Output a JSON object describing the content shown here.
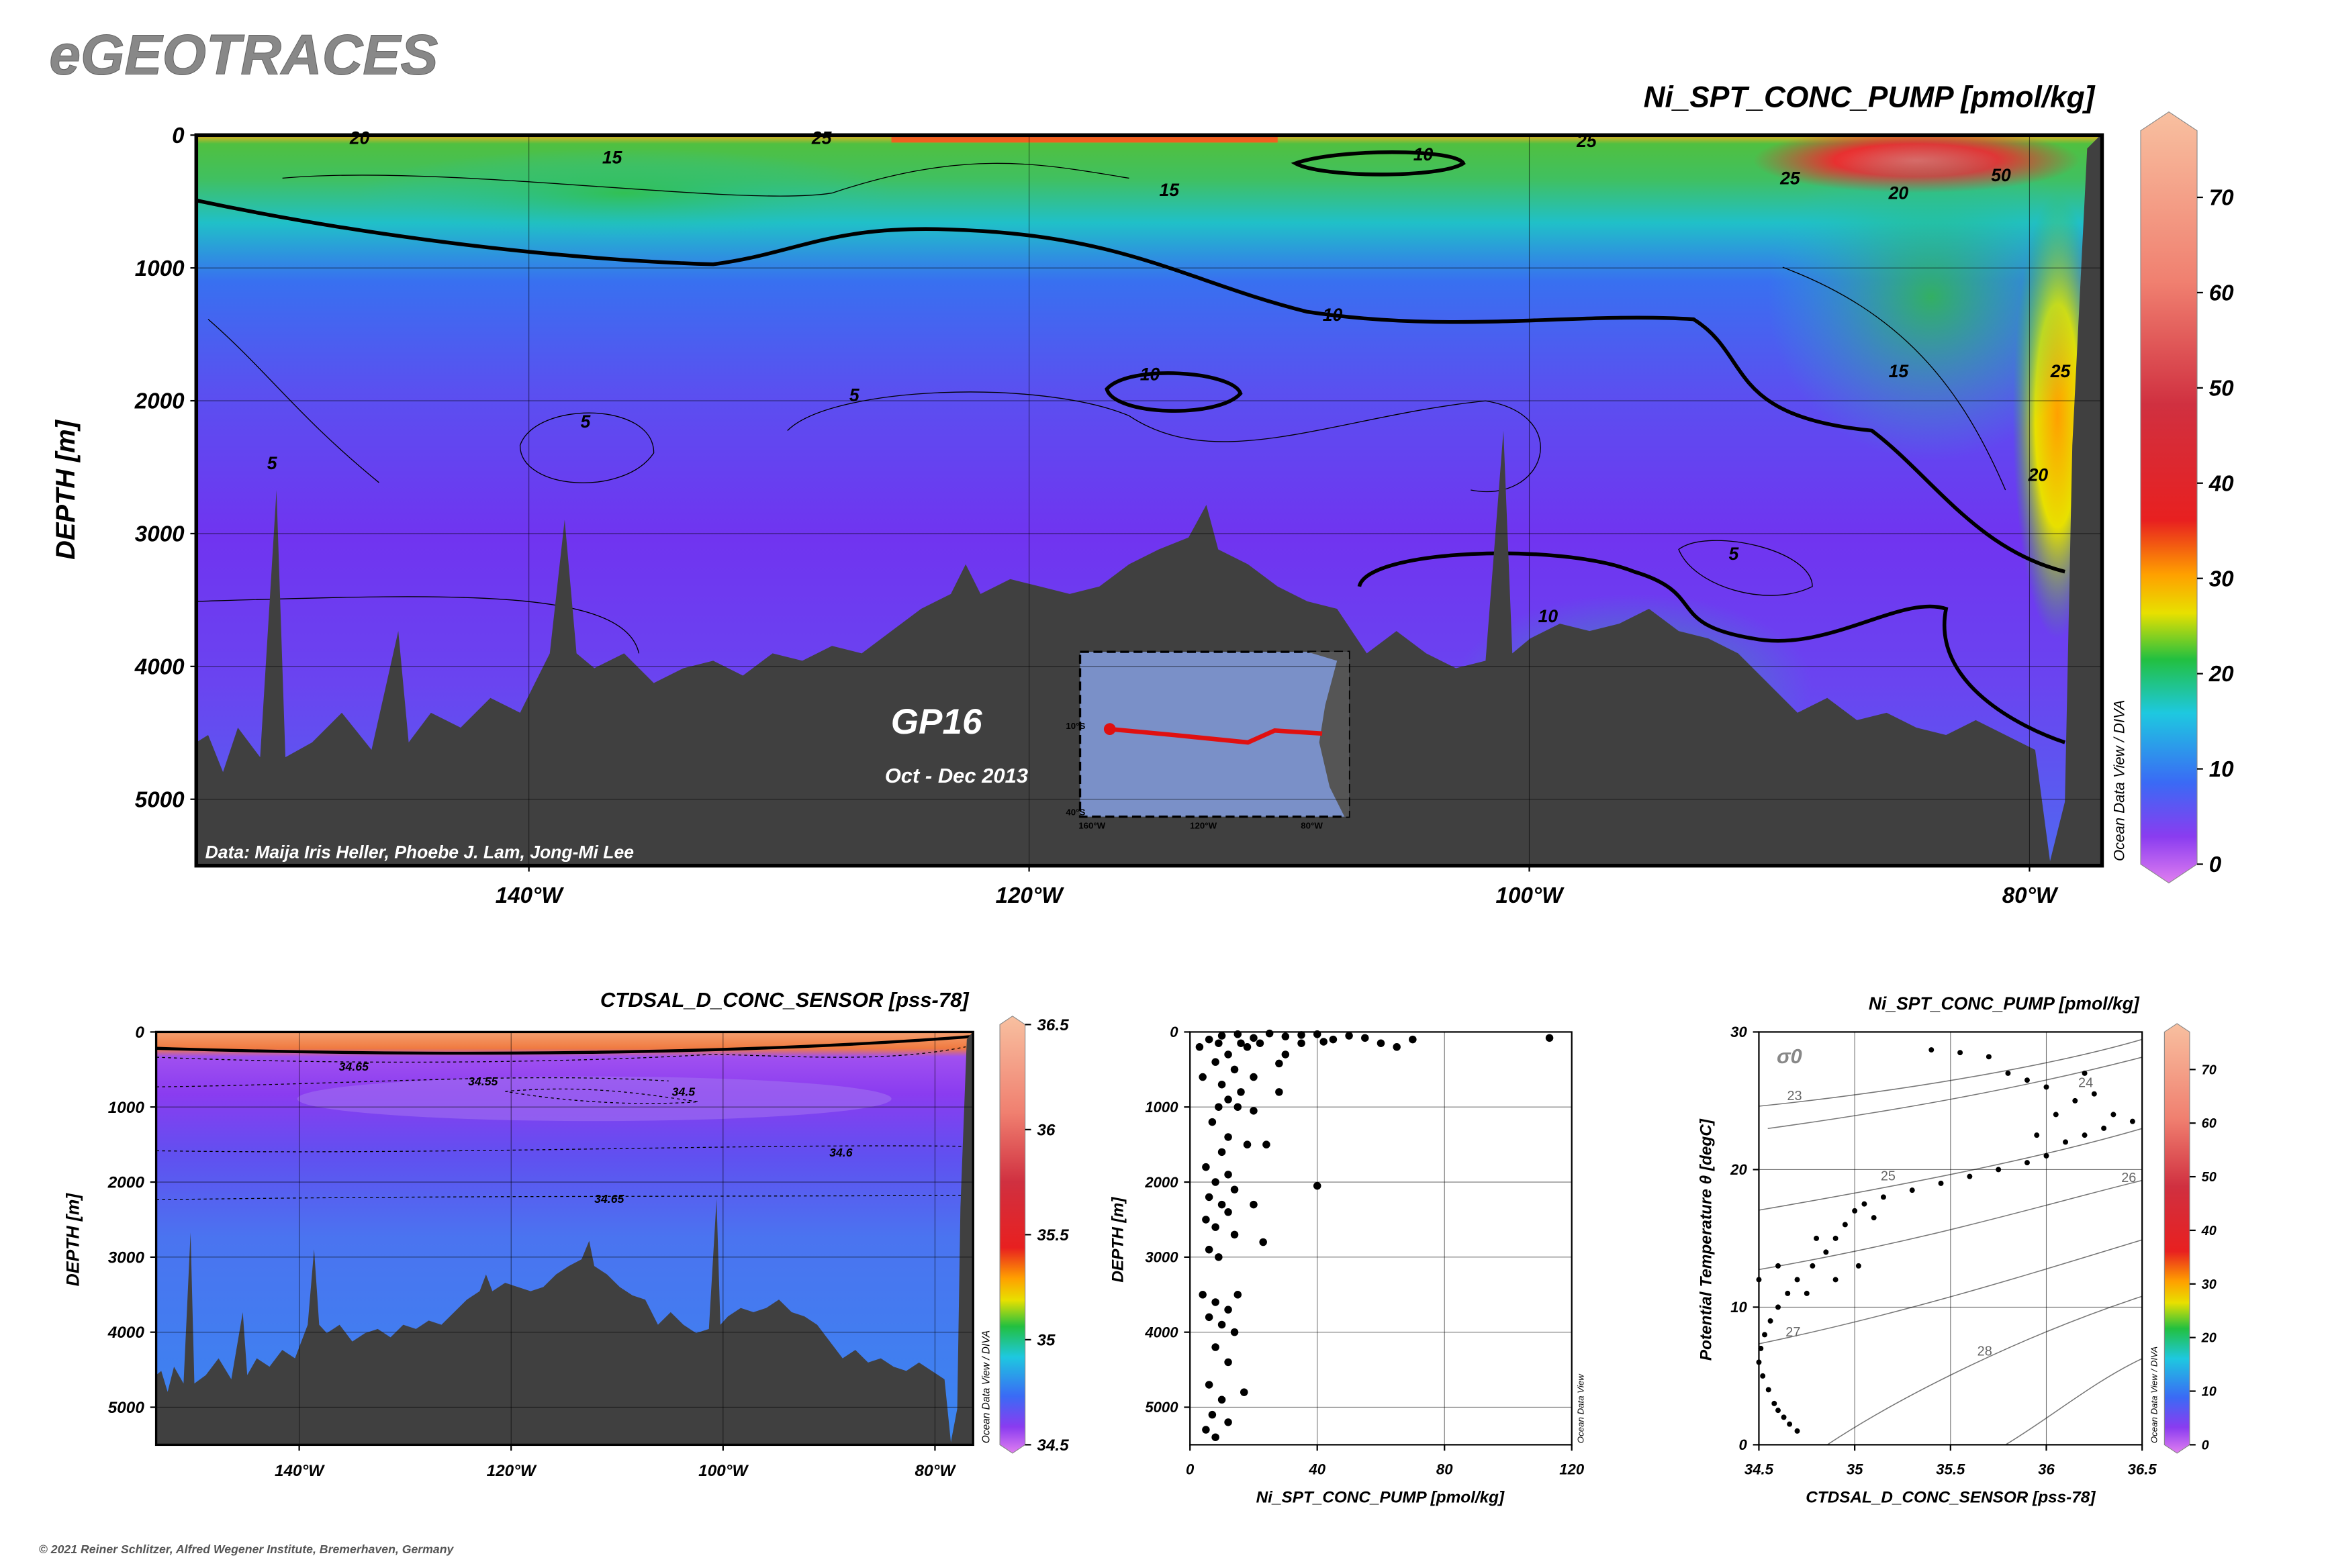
{
  "header": {
    "title": "eGEOTRACES",
    "footer": "© 2021 Reiner Schlitzer, Alfred Wegener Institute, Bremerhaven, Germany"
  },
  "chart_data": [
    {
      "type": "section",
      "title": "Ni_SPT_CONC_PUMP [pmol/kg]",
      "y_label": "DEPTH [m]",
      "xlim": [
        -153.3,
        -77.1
      ],
      "xticks": [
        {
          "value": -140,
          "label": "140°W"
        },
        {
          "value": -120,
          "label": "120°W"
        },
        {
          "value": -100,
          "label": "100°W"
        },
        {
          "value": -80,
          "label": "80°W"
        }
      ],
      "ylim": [
        0,
        5500
      ],
      "yreverse": true,
      "yticks": [
        0,
        1000,
        2000,
        3000,
        4000,
        5000
      ],
      "grid": true,
      "colorbar": {
        "lim": [
          0,
          77
        ],
        "ticks": [
          0,
          10,
          20,
          30,
          40,
          50,
          60,
          70
        ]
      },
      "contour_labels": [
        20,
        25,
        15,
        10,
        25,
        15,
        25,
        20,
        50,
        10,
        10,
        5,
        5,
        5,
        15,
        25,
        20,
        5,
        10
      ],
      "annotations": [
        "GP16",
        "Oct - Dec 2013",
        "Data: Maija Iris Heller, Phoebe J. Lam, Jong-Mi Lee",
        "Ocean Data View / DIVA"
      ],
      "inset_labels": [
        "10°S",
        "40°S",
        "160°W",
        "120°W",
        "80°W"
      ]
    },
    {
      "type": "section",
      "title": "CTDSAL_D_CONC_SENSOR [pss-78]",
      "y_label": "DEPTH [m]",
      "xlim": [
        -153.5,
        -76.4
      ],
      "xticks": [
        {
          "value": -140,
          "label": "140°W"
        },
        {
          "value": -120,
          "label": "120°W"
        },
        {
          "value": -100,
          "label": "100°W"
        },
        {
          "value": -80,
          "label": "80°W"
        }
      ],
      "ylim": [
        0,
        5500
      ],
      "yreverse": true,
      "yticks": [
        0,
        1000,
        2000,
        3000,
        4000,
        5000
      ],
      "grid": true,
      "colorbar": {
        "lim": [
          34.5,
          36.5
        ],
        "ticks": [
          34.5,
          35,
          35.5,
          36,
          36.5
        ]
      },
      "contour_labels": [
        34.65,
        34.55,
        34.5,
        34.6,
        34.65
      ],
      "annotations": [
        "Ocean Data View / DIVA"
      ]
    },
    {
      "type": "scatter",
      "x_label": "Ni_SPT_CONC_PUMP [pmol/kg]",
      "y_label": "DEPTH [m]",
      "xlim": [
        0,
        120
      ],
      "xticks": [
        0,
        40,
        80,
        120
      ],
      "ylim": [
        0,
        5500
      ],
      "yreverse": true,
      "yticks": [
        0,
        1000,
        2000,
        3000,
        4000,
        5000
      ],
      "grid": true,
      "color": "#000000",
      "x": [
        10,
        15,
        20,
        25,
        30,
        35,
        40,
        45,
        50,
        55,
        60,
        65,
        70,
        113,
        18,
        12,
        8,
        14,
        20,
        10,
        16,
        12,
        9,
        15,
        20,
        28,
        7,
        12,
        18,
        10,
        24,
        5,
        12,
        8,
        14,
        40,
        6,
        10,
        12,
        20,
        5,
        8,
        14,
        23,
        6,
        9,
        4,
        8,
        12,
        15,
        6,
        10,
        14,
        8,
        12,
        6,
        10,
        17,
        7,
        12,
        5,
        8,
        28,
        30,
        35,
        42,
        22,
        16,
        9,
        6,
        3,
        4
      ],
      "values": [
        50,
        30,
        80,
        20,
        60,
        40,
        30,
        100,
        50,
        80,
        150,
        200,
        100,
        80,
        200,
        300,
        400,
        500,
        600,
        700,
        800,
        900,
        1000,
        1000,
        1050,
        800,
        1200,
        1400,
        1500,
        1600,
        1500,
        1800,
        1900,
        2000,
        2100,
        2050,
        2200,
        2300,
        2400,
        2300,
        2500,
        2600,
        2700,
        2800,
        2900,
        3000,
        3500,
        3600,
        3700,
        3500,
        3800,
        3900,
        4000,
        4200,
        4400,
        4700,
        4900,
        4800,
        5100,
        5200,
        5300,
        5400,
        420,
        300,
        150,
        130,
        150,
        150,
        150,
        100,
        200,
        600
      ],
      "annotations": [
        "Ocean Data View"
      ]
    },
    {
      "type": "scatter",
      "title": "Ni_SPT_CONC_PUMP [pmol/kg]",
      "x_label": "CTDSAL_D_CONC_SENSOR [pss-78]",
      "y_label": "Potential Temperature θ [degC]",
      "xlim": [
        34.5,
        36.5
      ],
      "xticks": [
        34.5,
        35,
        35.5,
        36,
        36.5
      ],
      "ylim": [
        0,
        30
      ],
      "yticks": [
        0,
        10,
        20,
        30
      ],
      "grid": true,
      "color": "#000000",
      "x": [
        34.7,
        34.66,
        34.63,
        34.6,
        34.58,
        34.55,
        34.52,
        34.5,
        34.51,
        34.53,
        34.56,
        34.6,
        34.65,
        34.7,
        34.78,
        34.85,
        34.9,
        34.95,
        35.0,
        35.05,
        35.15,
        35.3,
        35.45,
        35.6,
        35.75,
        35.9,
        36.0,
        36.1,
        36.2,
        36.3,
        36.45,
        35.95,
        36.05,
        36.15,
        36.0,
        35.8,
        35.9,
        35.7,
        35.55,
        36.2,
        36.25,
        36.35,
        35.4,
        34.5,
        34.6,
        34.75,
        34.8,
        35.02,
        34.9,
        35.1
      ],
      "values": [
        1.0,
        1.5,
        2,
        2.5,
        3,
        4,
        5,
        6,
        7,
        8,
        9,
        10,
        11,
        12,
        13,
        14,
        15,
        16,
        17,
        17.5,
        18,
        18.5,
        19,
        19.5,
        20,
        20.5,
        21,
        22,
        22.5,
        23,
        23.5,
        22.5,
        24,
        25,
        26,
        27,
        26.5,
        28.2,
        28.5,
        27,
        25.5,
        24,
        28.7,
        12,
        13,
        11,
        15,
        13,
        12,
        16.5
      ],
      "colorbar": {
        "lim": [
          0,
          77
        ],
        "ticks": [
          0,
          10,
          20,
          30,
          40,
          50,
          60,
          70
        ]
      },
      "isopycnal_labels": [
        23,
        24,
        25,
        26,
        27,
        28
      ],
      "sigma_label": "σ0",
      "annotations": [
        "Ocean Data View / DIVA"
      ]
    }
  ]
}
